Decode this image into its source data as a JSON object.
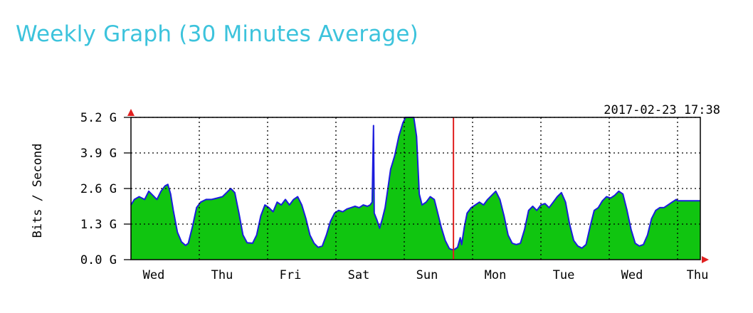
{
  "page": {
    "title": "Weekly Graph (30 Minutes Average)"
  },
  "chart_data": {
    "type": "area",
    "timestamp": "2017-02-23 17:38",
    "ylabel": "Bits / Second",
    "ylim": [
      0,
      5.2
    ],
    "y_ticks": [
      {
        "value": 0.0,
        "label": "0.0 G"
      },
      {
        "value": 1.3,
        "label": "1.3 G"
      },
      {
        "value": 2.6,
        "label": "2.6 G"
      },
      {
        "value": 3.9,
        "label": "3.9 G"
      },
      {
        "value": 5.2,
        "label": "5.2 G"
      }
    ],
    "x_unit": "days",
    "xlim": [
      0,
      8.35
    ],
    "x_day_labels": [
      "Wed",
      "Thu",
      "Fri",
      "Sat",
      "Sun",
      "Mon",
      "Tue",
      "Wed",
      "Thu"
    ],
    "grid": true,
    "marker_line_x": 4.72,
    "colors": {
      "fill": "#10c510",
      "line": "#1b1bdd",
      "marker": "#e02020",
      "grid": "#000000"
    },
    "series": [
      {
        "values": [
          [
            0.0,
            2.0
          ],
          [
            0.05,
            2.2
          ],
          [
            0.12,
            2.3
          ],
          [
            0.2,
            2.2
          ],
          [
            0.26,
            2.5
          ],
          [
            0.32,
            2.35
          ],
          [
            0.38,
            2.2
          ],
          [
            0.44,
            2.5
          ],
          [
            0.5,
            2.7
          ],
          [
            0.54,
            2.75
          ],
          [
            0.58,
            2.4
          ],
          [
            0.62,
            1.8
          ],
          [
            0.68,
            1.0
          ],
          [
            0.74,
            0.65
          ],
          [
            0.8,
            0.52
          ],
          [
            0.84,
            0.6
          ],
          [
            0.9,
            1.2
          ],
          [
            0.96,
            1.9
          ],
          [
            1.02,
            2.1
          ],
          [
            1.1,
            2.2
          ],
          [
            1.18,
            2.2
          ],
          [
            1.26,
            2.25
          ],
          [
            1.34,
            2.3
          ],
          [
            1.4,
            2.45
          ],
          [
            1.46,
            2.6
          ],
          [
            1.52,
            2.45
          ],
          [
            1.58,
            1.7
          ],
          [
            1.64,
            0.9
          ],
          [
            1.7,
            0.62
          ],
          [
            1.78,
            0.6
          ],
          [
            1.84,
            0.9
          ],
          [
            1.9,
            1.6
          ],
          [
            1.96,
            2.0
          ],
          [
            2.02,
            1.9
          ],
          [
            2.08,
            1.75
          ],
          [
            2.14,
            2.1
          ],
          [
            2.2,
            2.0
          ],
          [
            2.26,
            2.2
          ],
          [
            2.32,
            2.0
          ],
          [
            2.38,
            2.2
          ],
          [
            2.44,
            2.3
          ],
          [
            2.5,
            2.0
          ],
          [
            2.56,
            1.5
          ],
          [
            2.62,
            0.9
          ],
          [
            2.68,
            0.6
          ],
          [
            2.74,
            0.45
          ],
          [
            2.8,
            0.5
          ],
          [
            2.86,
            0.9
          ],
          [
            2.92,
            1.4
          ],
          [
            2.98,
            1.7
          ],
          [
            3.04,
            1.8
          ],
          [
            3.1,
            1.75
          ],
          [
            3.16,
            1.85
          ],
          [
            3.22,
            1.9
          ],
          [
            3.28,
            1.95
          ],
          [
            3.34,
            1.9
          ],
          [
            3.4,
            2.0
          ],
          [
            3.46,
            1.95
          ],
          [
            3.5,
            2.0
          ],
          [
            3.53,
            2.1
          ],
          [
            3.55,
            4.9
          ],
          [
            3.56,
            1.7
          ],
          [
            3.6,
            1.45
          ],
          [
            3.64,
            1.15
          ],
          [
            3.68,
            1.5
          ],
          [
            3.72,
            1.9
          ],
          [
            3.76,
            2.6
          ],
          [
            3.8,
            3.3
          ],
          [
            3.86,
            3.8
          ],
          [
            3.92,
            4.5
          ],
          [
            3.98,
            5.0
          ],
          [
            4.02,
            5.2
          ],
          [
            4.14,
            5.2
          ],
          [
            4.18,
            4.5
          ],
          [
            4.22,
            2.4
          ],
          [
            4.26,
            2.0
          ],
          [
            4.32,
            2.1
          ],
          [
            4.38,
            2.3
          ],
          [
            4.44,
            2.2
          ],
          [
            4.48,
            1.8
          ],
          [
            4.54,
            1.2
          ],
          [
            4.6,
            0.7
          ],
          [
            4.66,
            0.4
          ],
          [
            4.72,
            0.35
          ],
          [
            4.78,
            0.45
          ],
          [
            4.82,
            0.8
          ],
          [
            4.84,
            0.55
          ],
          [
            4.88,
            1.2
          ],
          [
            4.92,
            1.7
          ],
          [
            4.98,
            1.9
          ],
          [
            5.04,
            2.0
          ],
          [
            5.1,
            2.1
          ],
          [
            5.16,
            2.0
          ],
          [
            5.22,
            2.2
          ],
          [
            5.28,
            2.35
          ],
          [
            5.34,
            2.5
          ],
          [
            5.4,
            2.2
          ],
          [
            5.46,
            1.6
          ],
          [
            5.52,
            0.9
          ],
          [
            5.58,
            0.6
          ],
          [
            5.64,
            0.55
          ],
          [
            5.7,
            0.6
          ],
          [
            5.76,
            1.1
          ],
          [
            5.82,
            1.8
          ],
          [
            5.88,
            1.95
          ],
          [
            5.94,
            1.8
          ],
          [
            6.0,
            2.0
          ],
          [
            6.06,
            2.05
          ],
          [
            6.12,
            1.9
          ],
          [
            6.18,
            2.1
          ],
          [
            6.24,
            2.3
          ],
          [
            6.3,
            2.45
          ],
          [
            6.36,
            2.1
          ],
          [
            6.42,
            1.3
          ],
          [
            6.48,
            0.7
          ],
          [
            6.54,
            0.5
          ],
          [
            6.6,
            0.42
          ],
          [
            6.66,
            0.55
          ],
          [
            6.72,
            1.2
          ],
          [
            6.78,
            1.8
          ],
          [
            6.84,
            1.9
          ],
          [
            6.9,
            2.15
          ],
          [
            6.96,
            2.3
          ],
          [
            7.02,
            2.25
          ],
          [
            7.08,
            2.35
          ],
          [
            7.14,
            2.5
          ],
          [
            7.2,
            2.4
          ],
          [
            7.26,
            1.8
          ],
          [
            7.32,
            1.1
          ],
          [
            7.38,
            0.6
          ],
          [
            7.44,
            0.5
          ],
          [
            7.5,
            0.55
          ],
          [
            7.56,
            0.9
          ],
          [
            7.62,
            1.5
          ],
          [
            7.68,
            1.8
          ],
          [
            7.74,
            1.9
          ],
          [
            7.8,
            1.9
          ],
          [
            7.86,
            2.0
          ],
          [
            7.92,
            2.1
          ],
          [
            7.98,
            2.2
          ],
          [
            8.0,
            2.15
          ],
          [
            8.35,
            2.15
          ]
        ]
      }
    ]
  }
}
